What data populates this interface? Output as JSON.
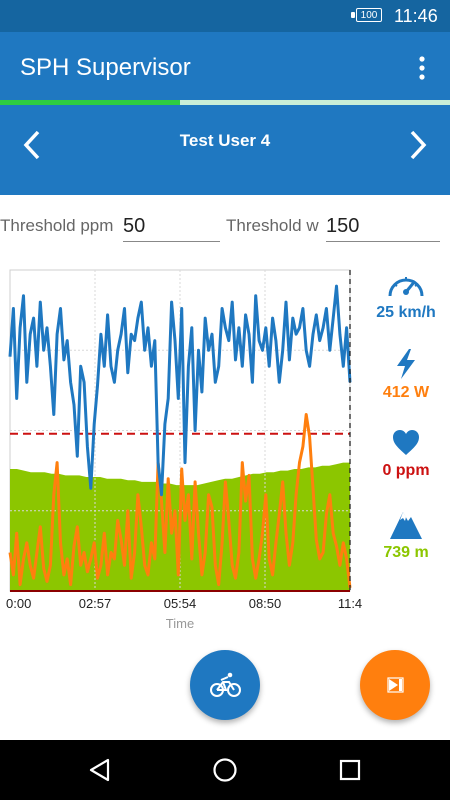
{
  "status_bar": {
    "battery": "100",
    "time": "11:46"
  },
  "app_bar": {
    "title": "SPH Supervisor",
    "menu_icon": "more-vert-icon"
  },
  "progress": {
    "fraction": 0.4
  },
  "user_nav": {
    "user_name": "Test User 4",
    "prev_icon": "chevron-left-icon",
    "next_icon": "chevron-right-icon"
  },
  "thresholds": {
    "ppm_label": "Threshold ppm",
    "ppm_value": "50",
    "w_label": "Threshold w",
    "w_value": "150"
  },
  "stats": {
    "speed": {
      "icon": "speedometer-icon",
      "value": "25 km/h",
      "color": "#1f78c1"
    },
    "power": {
      "icon": "lightning-icon",
      "value": "412 W",
      "color": "#ff7f0e"
    },
    "heart": {
      "icon": "heart-icon",
      "value": "0 ppm",
      "color": "#cc1111"
    },
    "altitude": {
      "icon": "mountain-icon",
      "value": "739 m",
      "color": "#8cc600"
    }
  },
  "chart_data": {
    "type": "line",
    "xlabel": "Time",
    "x_ticks": [
      "0:00",
      "02:57",
      "05:54",
      "08:50",
      "11:4"
    ],
    "grid": true,
    "colors": {
      "speed": "#1f78c1",
      "power": "#ff7f0e",
      "altitude": "#8cc600",
      "threshold": "#cc1111"
    },
    "series": [
      {
        "key": "speed",
        "values": [
          0.27,
          0.12,
          0.4,
          0.18,
          0.08,
          0.35,
          0.2,
          0.15,
          0.3,
          0.1,
          0.25,
          0.18,
          0.3,
          0.45,
          0.2,
          0.12,
          0.28,
          0.22,
          0.35,
          0.42,
          0.58,
          0.3,
          0.35,
          0.55,
          0.68,
          0.48,
          0.36,
          0.2,
          0.3,
          0.14,
          0.3,
          0.35,
          0.25,
          0.2,
          0.12,
          0.32,
          0.2,
          0.22,
          0.15,
          0.1,
          0.25,
          0.18,
          0.3,
          0.22,
          0.6,
          0.7,
          0.48,
          0.4,
          0.1,
          0.22,
          0.4,
          0.12,
          0.6,
          0.3,
          0.18,
          0.5,
          0.25,
          0.38,
          0.15,
          0.25,
          0.2,
          0.35,
          0.3,
          0.12,
          0.18,
          0.22,
          0.1,
          0.28,
          0.18,
          0.3,
          0.14,
          0.2,
          0.35,
          0.08,
          0.22,
          0.25,
          0.18,
          0.3,
          0.15,
          0.22,
          0.35,
          0.25,
          0.1,
          0.28,
          0.15,
          0.2,
          0.18,
          0.12,
          0.25,
          0.3,
          0.2,
          0.14,
          0.22,
          0.18,
          0.12,
          0.25,
          0.15,
          0.05,
          0.2,
          0.3,
          0.18,
          0.35
        ]
      },
      {
        "key": "power",
        "values": [
          0.88,
          0.95,
          0.82,
          0.98,
          0.9,
          0.85,
          0.92,
          0.96,
          0.88,
          0.8,
          0.93,
          0.97,
          0.92,
          0.7,
          0.6,
          0.85,
          0.95,
          0.9,
          0.98,
          0.86,
          0.8,
          0.92,
          0.88,
          0.94,
          0.9,
          0.85,
          0.96,
          0.92,
          0.82,
          0.95,
          0.88,
          0.9,
          0.78,
          0.84,
          0.92,
          0.75,
          0.96,
          0.88,
          0.7,
          0.8,
          0.92,
          0.95,
          0.85,
          0.9,
          0.6,
          0.72,
          0.88,
          0.65,
          0.82,
          0.75,
          0.95,
          0.62,
          0.78,
          0.7,
          0.9,
          0.66,
          0.82,
          0.95,
          0.88,
          0.7,
          0.74,
          0.92,
          0.98,
          0.85,
          0.66,
          0.78,
          0.92,
          0.96,
          0.88,
          0.6,
          0.72,
          0.64,
          0.9,
          0.96,
          0.9,
          0.82,
          0.7,
          0.9,
          0.95,
          0.85,
          0.76,
          0.66,
          0.82,
          0.92,
          0.85,
          0.7,
          0.6,
          0.55,
          0.45,
          0.52,
          0.68,
          0.84,
          0.9,
          0.88,
          0.76,
          0.7,
          0.82,
          0.86,
          0.92,
          0.85,
          0.9,
          0.99
        ]
      },
      {
        "key": "altitude",
        "values": [
          0.62,
          0.62,
          0.625,
          0.63,
          0.63,
          0.63,
          0.635,
          0.635,
          0.64,
          0.64,
          0.64,
          0.645,
          0.645,
          0.645,
          0.65,
          0.65,
          0.65,
          0.655,
          0.655,
          0.66,
          0.66,
          0.66,
          0.665,
          0.665,
          0.67,
          0.67,
          0.67,
          0.67,
          0.665,
          0.66,
          0.655,
          0.65,
          0.65,
          0.645,
          0.64,
          0.635,
          0.635,
          0.63,
          0.63,
          0.625,
          0.625,
          0.62,
          0.62,
          0.615,
          0.615,
          0.61,
          0.61,
          0.605,
          0.6,
          0.6
        ]
      },
      {
        "key": "threshold",
        "values": [
          0.51
        ]
      }
    ]
  },
  "fab": {
    "bike_icon": "bicycle-icon",
    "bike_color": "#1f78c1",
    "play_icon": "skip-next-icon",
    "play_color": "#ff7f0e"
  },
  "navbar": {
    "back_icon": "back-triangle-icon",
    "home_icon": "home-icon",
    "recents_icon": "recents-square-icon"
  }
}
